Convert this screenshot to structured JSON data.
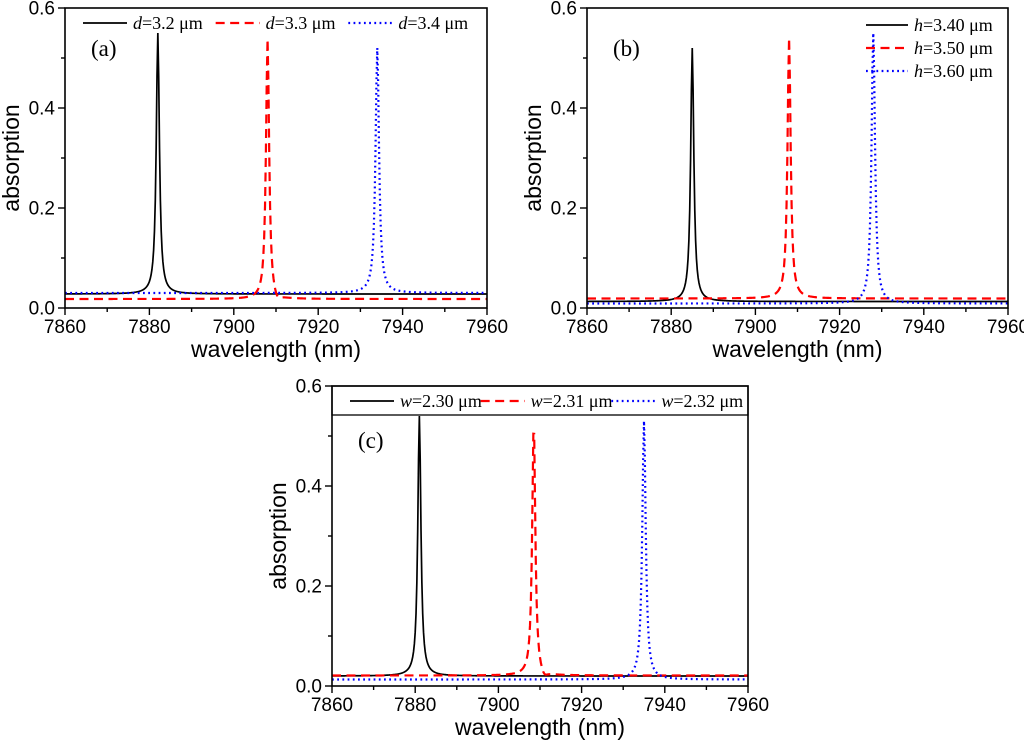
{
  "figure": {
    "background": "#ffffff",
    "colors": {
      "series1": "#000000",
      "series2": "#ff0000",
      "series3": "#0000ff",
      "frame": "#000000"
    }
  },
  "chart_data": [
    {
      "id": "a",
      "type": "line",
      "panel_label": "(a)",
      "xlabel": "wavelength (nm)",
      "ylabel": "absorption",
      "xlim": [
        7860,
        7960
      ],
      "ylim": [
        0,
        0.6
      ],
      "x_major_ticks": [
        7860,
        7880,
        7900,
        7920,
        7940,
        7960
      ],
      "x_minor_ticks": [
        7870,
        7890,
        7910,
        7930,
        7950
      ],
      "y_major_ticks": [
        "0.0",
        "0.2",
        "0.4",
        "0.6"
      ],
      "y_minor_ticks": [
        0.1,
        0.3,
        0.5
      ],
      "grid": false,
      "legend": {
        "layout": "row-top",
        "boxed": false,
        "entries": [
          {
            "var": "d",
            "rest": "=3.2 μm",
            "color": "#000000",
            "line": "solid"
          },
          {
            "var": "d",
            "rest": "=3.3 μm",
            "color": "#ff0000",
            "line": "dashed"
          },
          {
            "var": "d",
            "rest": "=3.4 μm",
            "color": "#0000ff",
            "line": "dotted"
          }
        ]
      },
      "series": [
        {
          "name": "d=3.2 μm",
          "color": "#000000",
          "line": "solid",
          "baseline": 0.028,
          "peak": {
            "center": 7882,
            "height": 0.55,
            "fwhm": 0.9
          },
          "dip": null
        },
        {
          "name": "d=3.3 μm",
          "color": "#ff0000",
          "line": "dashed",
          "baseline": 0.018,
          "peak": {
            "center": 7908,
            "height": 0.54,
            "fwhm": 0.9
          },
          "dip": {
            "center": 7910.3,
            "depth": 0.013,
            "fwhm": 2.0
          }
        },
        {
          "name": "d=3.4 μm",
          "color": "#0000ff",
          "line": "dotted",
          "baseline": 0.03,
          "peak": {
            "center": 7934,
            "height": 0.52,
            "fwhm": 1.0
          },
          "dip": null
        }
      ]
    },
    {
      "id": "b",
      "type": "line",
      "panel_label": "(b)",
      "xlabel": "wavelength (nm)",
      "ylabel": "absorption",
      "xlim": [
        7860,
        7960
      ],
      "ylim": [
        0,
        0.6
      ],
      "x_major_ticks": [
        7860,
        7880,
        7900,
        7920,
        7940,
        7960
      ],
      "x_minor_ticks": [
        7870,
        7890,
        7910,
        7930,
        7950
      ],
      "y_major_ticks": [
        "0.0",
        "0.2",
        "0.4",
        "0.6"
      ],
      "y_minor_ticks": [
        0.1,
        0.3,
        0.5
      ],
      "grid": false,
      "legend": {
        "layout": "column-top-right",
        "boxed": false,
        "entries": [
          {
            "var": "h",
            "rest": "=3.40 μm",
            "color": "#000000",
            "line": "solid"
          },
          {
            "var": "h",
            "rest": "=3.50 μm",
            "color": "#ff0000",
            "line": "dashed"
          },
          {
            "var": "h",
            "rest": "=3.60 μm",
            "color": "#0000ff",
            "line": "dotted"
          }
        ]
      },
      "series": [
        {
          "name": "h=3.40 μm",
          "color": "#000000",
          "line": "solid",
          "baseline": 0.013,
          "peak": {
            "center": 7885,
            "height": 0.52,
            "fwhm": 0.9
          },
          "dip": null
        },
        {
          "name": "h=3.50 μm",
          "color": "#ff0000",
          "line": "dashed",
          "baseline": 0.019,
          "peak": {
            "center": 7908,
            "height": 0.54,
            "fwhm": 0.9
          },
          "dip": null
        },
        {
          "name": "h=3.60 μm",
          "color": "#0000ff",
          "line": "dotted",
          "baseline": 0.009,
          "peak": {
            "center": 7928,
            "height": 0.55,
            "fwhm": 1.0
          },
          "dip": null
        }
      ]
    },
    {
      "id": "c",
      "type": "line",
      "panel_label": "(c)",
      "xlabel": "wavelength (nm)",
      "ylabel": "absorption",
      "xlim": [
        7860,
        7960
      ],
      "ylim": [
        0,
        0.6
      ],
      "x_major_ticks": [
        7860,
        7880,
        7900,
        7920,
        7940,
        7960
      ],
      "x_minor_ticks": [
        7870,
        7890,
        7910,
        7930,
        7950
      ],
      "y_major_ticks": [
        "0.0",
        "0.2",
        "0.4",
        "0.6"
      ],
      "y_minor_ticks": [
        0.1,
        0.3,
        0.5
      ],
      "grid": false,
      "legend": {
        "layout": "row-top",
        "boxed": true,
        "entries": [
          {
            "var": "w",
            "rest": "=2.30 μm",
            "color": "#000000",
            "line": "solid"
          },
          {
            "var": "w",
            "rest": "=2.31 μm",
            "color": "#ff0000",
            "line": "dashed"
          },
          {
            "var": "w",
            "rest": "=2.32 μm",
            "color": "#0000ff",
            "line": "dotted"
          }
        ]
      },
      "series": [
        {
          "name": "w=2.30 μm",
          "color": "#000000",
          "line": "solid",
          "baseline": 0.02,
          "peak": {
            "center": 7881,
            "height": 0.54,
            "fwhm": 0.9
          },
          "dip": null
        },
        {
          "name": "w=2.31 μm",
          "color": "#ff0000",
          "line": "dashed",
          "baseline": 0.021,
          "peak": {
            "center": 7908.5,
            "height": 0.53,
            "fwhm": 0.9
          },
          "dip": {
            "center": 7911,
            "depth": 0.012,
            "fwhm": 2.0
          }
        },
        {
          "name": "w=2.32 μm",
          "color": "#0000ff",
          "line": "dotted",
          "baseline": 0.013,
          "peak": {
            "center": 7935,
            "height": 0.53,
            "fwhm": 1.0
          },
          "dip": null
        }
      ]
    }
  ]
}
